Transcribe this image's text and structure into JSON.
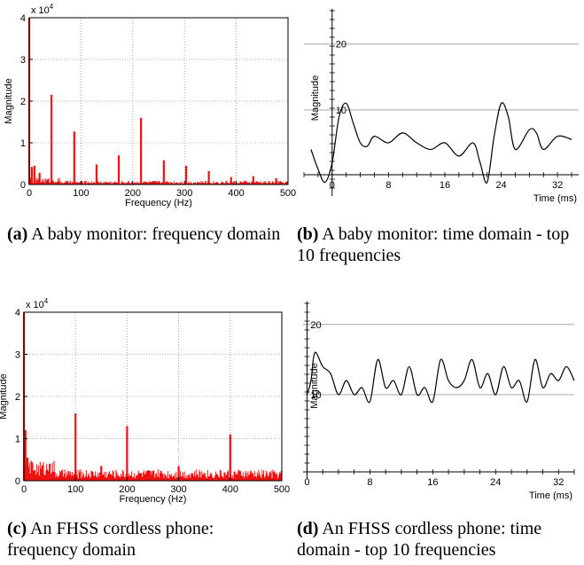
{
  "captions": [
    {
      "tag": "(a)",
      "text": "A baby monitor: frequency domain"
    },
    {
      "tag": "(b)",
      "text": "A baby monitor: time domain - top 10 frequencies"
    },
    {
      "tag": "(c)",
      "text": "An FHSS cordless phone: frequency domain"
    },
    {
      "tag": "(d)",
      "text": "An FHSS cordless phone: time domain - top 10 frequencies"
    }
  ],
  "colors": {
    "spectrum": "#ee1111",
    "waveform": "#000000",
    "grid": "#9a9a9a"
  },
  "chart_data": [
    {
      "type": "bar",
      "xlabel": "Frequency (Hz)",
      "ylabel": "Magnitude",
      "y_multiplier": "x 10^4",
      "xlim": [
        0,
        500
      ],
      "ylim": [
        0,
        4
      ],
      "xticks": [
        0,
        100,
        200,
        300,
        400,
        500
      ],
      "yticks": [
        0,
        1,
        2,
        3,
        4
      ],
      "grid": true,
      "peaks": [
        {
          "x": 0,
          "y": 4.0
        },
        {
          "x": 43,
          "y": 2.15
        },
        {
          "x": 87,
          "y": 1.27
        },
        {
          "x": 130,
          "y": 0.48
        },
        {
          "x": 173,
          "y": 0.7
        },
        {
          "x": 216,
          "y": 1.6
        },
        {
          "x": 260,
          "y": 0.58
        },
        {
          "x": 303,
          "y": 0.45
        },
        {
          "x": 347,
          "y": 0.32
        },
        {
          "x": 390,
          "y": 0.18
        },
        {
          "x": 433,
          "y": 0.2
        },
        {
          "x": 477,
          "y": 0.15
        },
        {
          "x": 5,
          "y": 0.42
        },
        {
          "x": 10,
          "y": 0.45
        },
        {
          "x": 20,
          "y": 0.28
        }
      ],
      "noise_floor": 0.06
    },
    {
      "type": "line",
      "xlabel": "Time (ms)",
      "ylabel": "Magnitude",
      "xlim": [
        -4,
        35
      ],
      "ylim": [
        -2,
        24
      ],
      "xticks": [
        0,
        8,
        16,
        24,
        32
      ],
      "yticks": [
        10,
        20
      ],
      "grid": true,
      "series": [
        {
          "x": [
            -3,
            -2,
            -1,
            0,
            1,
            2,
            3,
            4,
            5,
            6,
            8,
            10,
            12,
            14,
            16,
            18,
            20,
            21,
            22,
            23,
            24,
            25,
            26,
            28,
            29,
            30,
            32,
            34
          ],
          "y": [
            4,
            1,
            -1,
            2,
            9,
            11,
            8,
            5,
            4.5,
            6,
            5,
            6.5,
            5,
            4,
            5,
            3,
            5,
            2,
            -1,
            6,
            11,
            9,
            4,
            7,
            6.5,
            4,
            6,
            5.5
          ]
        }
      ]
    },
    {
      "type": "bar",
      "xlabel": "Frequency (Hz)",
      "ylabel": "Magnitude",
      "y_multiplier": "x 10^4",
      "xlim": [
        0,
        500
      ],
      "ylim": [
        0,
        4
      ],
      "xticks": [
        0,
        100,
        200,
        300,
        400,
        500
      ],
      "yticks": [
        0,
        1,
        2,
        3,
        4
      ],
      "grid": true,
      "peaks": [
        {
          "x": 0,
          "y": 4.0
        },
        {
          "x": 3,
          "y": 1.2
        },
        {
          "x": 7,
          "y": 0.55
        },
        {
          "x": 15,
          "y": 0.45
        },
        {
          "x": 50,
          "y": 0.4
        },
        {
          "x": 100,
          "y": 1.6
        },
        {
          "x": 150,
          "y": 0.35
        },
        {
          "x": 200,
          "y": 1.3
        },
        {
          "x": 250,
          "y": 0.2
        },
        {
          "x": 300,
          "y": 0.35
        },
        {
          "x": 350,
          "y": 0.18
        },
        {
          "x": 400,
          "y": 1.1
        },
        {
          "x": 450,
          "y": 0.08
        }
      ],
      "noise_floor": 0.18
    },
    {
      "type": "line",
      "xlabel": "Time (ms)",
      "ylabel": "Magnitude",
      "xlim": [
        -0.5,
        34
      ],
      "ylim": [
        -1,
        22
      ],
      "xticks": [
        0,
        8,
        16,
        24,
        32
      ],
      "yticks": [
        10,
        20
      ],
      "grid": true,
      "series": [
        {
          "x": [
            0,
            0.5,
            1,
            2,
            3,
            4,
            5,
            6,
            7,
            8,
            9,
            10,
            11,
            12,
            13,
            14,
            15,
            16,
            17,
            18,
            19,
            20,
            21,
            22,
            23,
            24,
            25,
            26,
            27,
            28,
            29,
            30,
            31,
            32,
            33,
            34
          ],
          "y": [
            10,
            12,
            16,
            14,
            13,
            10,
            12,
            10,
            11,
            9,
            15,
            11,
            12,
            10,
            14,
            10,
            11,
            9,
            15,
            12,
            11,
            12,
            15,
            11,
            13,
            10,
            14,
            11,
            12,
            9,
            15,
            11,
            13,
            12,
            14,
            12
          ]
        }
      ]
    }
  ]
}
